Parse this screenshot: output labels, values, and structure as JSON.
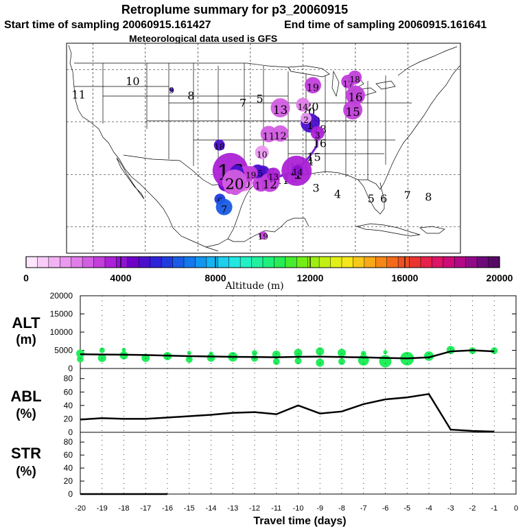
{
  "header": {
    "title": "Retroplume summary for p3_20060915",
    "start_label": "Start time of sampling 20060915.161427",
    "end_label": "End time of sampling 20060915.161641",
    "met_label": "Meteorological data used is GFS"
  },
  "map": {
    "plume_points": [
      {
        "day": "1",
        "lon": -88.6,
        "lat": 39.8,
        "alt": 5200,
        "size": 14
      },
      {
        "day": "2",
        "lon": -89.4,
        "lat": 40.7,
        "alt": 1500,
        "size": 8
      },
      {
        "day": "3",
        "lon": -87.2,
        "lat": 37.9,
        "alt": 3500,
        "size": 10
      },
      {
        "day": "4",
        "lon": -91.2,
        "lat": 30.7,
        "alt": 3600,
        "size": 22
      },
      {
        "day": "5",
        "lon": -104.7,
        "lat": 28.2,
        "alt": 4600,
        "size": 11
      },
      {
        "day": "6",
        "lon": -105.8,
        "lat": 25.3,
        "alt": 5800,
        "size": 8
      },
      {
        "day": "7",
        "lon": -105.0,
        "lat": 23.8,
        "alt": 6500,
        "size": 12
      },
      {
        "day": "8",
        "lon": -103.8,
        "lat": 27.6,
        "alt": 3000,
        "size": 10
      },
      {
        "day": "9",
        "lon": -102.9,
        "lat": 27.4,
        "alt": 3200,
        "size": 10
      },
      {
        "day": "10",
        "lon": -101.4,
        "lat": 28.6,
        "alt": 2200,
        "size": 14
      },
      {
        "day": "11",
        "lon": -98.0,
        "lat": 28.3,
        "alt": 3200,
        "size": 12
      },
      {
        "day": "12",
        "lon": -96.3,
        "lat": 28.5,
        "alt": 3000,
        "size": 14
      },
      {
        "day": "13",
        "lon": -95.6,
        "lat": 30.0,
        "alt": 3800,
        "size": 10
      },
      {
        "day": "14",
        "lon": -91.0,
        "lat": 30.8,
        "alt": 4200,
        "size": 8
      },
      {
        "day": "15",
        "lon": -98.6,
        "lat": 30.6,
        "alt": 5000,
        "size": 10
      },
      {
        "day": "16",
        "lon": -103.8,
        "lat": 30.7,
        "alt": 3800,
        "size": 26
      },
      {
        "day": "17",
        "lon": -100.7,
        "lat": 30.1,
        "alt": 3300,
        "size": 12
      },
      {
        "day": "18",
        "lon": -102.6,
        "lat": 30.5,
        "alt": 4800,
        "size": 10
      },
      {
        "day": "19",
        "lon": -99.9,
        "lat": 30.3,
        "alt": 3100,
        "size": 10
      },
      {
        "day": "20",
        "lon": -103.0,
        "lat": 28.6,
        "alt": 2600,
        "size": 18
      }
    ],
    "secondary_points": [
      {
        "day": "4",
        "lon": -97.6,
        "lat": 30.4,
        "alt": 5000,
        "size": 10
      },
      {
        "day": "10",
        "lon": -97.8,
        "lat": 34.2,
        "alt": 1500,
        "size": 10
      },
      {
        "day": "11",
        "lon": -96.5,
        "lat": 37.7,
        "alt": 2600,
        "size": 12
      },
      {
        "day": "12",
        "lon": -94.3,
        "lat": 37.8,
        "alt": 2600,
        "size": 12
      },
      {
        "day": "13",
        "lon": -94.3,
        "lat": 42.7,
        "alt": 2800,
        "size": 14
      },
      {
        "day": "14",
        "lon": -90.0,
        "lat": 43.3,
        "alt": 2000,
        "size": 10
      },
      {
        "day": "15",
        "lon": -80.5,
        "lat": 42.3,
        "alt": 3200,
        "size": 14
      },
      {
        "day": "16",
        "lon": -80.0,
        "lat": 45.1,
        "alt": 3200,
        "size": 14
      },
      {
        "day": "17",
        "lon": -81.4,
        "lat": 47.7,
        "alt": 3000,
        "size": 10
      },
      {
        "day": "18",
        "lon": -80.1,
        "lat": 48.5,
        "alt": 3000,
        "size": 10
      },
      {
        "day": "19",
        "lon": -88.1,
        "lat": 47.0,
        "alt": 3100,
        "size": 12
      },
      {
        "day": "18",
        "lon": -105.9,
        "lat": 35.6,
        "alt": 4800,
        "size": 8
      },
      {
        "day": "9",
        "lon": -115.0,
        "lat": 46.1,
        "alt": 5200,
        "size": 3
      },
      {
        "day": "19",
        "lon": -97.6,
        "lat": 18.4,
        "alt": 3300,
        "size": 6
      }
    ],
    "track_line": [
      [
        -89.4,
        40.7
      ],
      [
        -88.6,
        39.8
      ],
      [
        -87.2,
        37.9
      ],
      [
        -87.3,
        35.5
      ],
      [
        -88.6,
        33.6
      ],
      [
        -91.0,
        30.8
      ],
      [
        -91.8,
        30.5
      ],
      [
        -94.5,
        29.6
      ],
      [
        -96.6,
        30.4
      ],
      [
        -99.9,
        30.3
      ]
    ],
    "track_labels": [
      {
        "day": "20",
        "lon": -89.0,
        "lat": 41.2
      },
      {
        "day": "19",
        "lon": -88.0,
        "lat": 39.5
      },
      {
        "day": "18",
        "lon": -86.8,
        "lat": 37.9
      },
      {
        "day": "16",
        "lon": -86.8,
        "lat": 35.2
      },
      {
        "day": "15",
        "lon": -87.9,
        "lat": 32.6
      },
      {
        "day": "14",
        "lon": -89.3,
        "lat": 31.7
      },
      {
        "day": "13",
        "lon": -91.3,
        "lat": 30.7
      },
      {
        "day": "3",
        "lon": -89.4,
        "lat": 29.9
      },
      {
        "day": "12",
        "lon": -92.4,
        "lat": 28.6
      },
      {
        "day": "11",
        "lon": -93.9,
        "lat": 28.2
      },
      {
        "day": "3",
        "lon": -87.5,
        "lat": 26.7
      },
      {
        "day": "4",
        "lon": -83.4,
        "lat": 25.5
      },
      {
        "day": "5",
        "lon": -77.0,
        "lat": 24.7
      },
      {
        "day": "6",
        "lon": -74.6,
        "lat": 24.7
      },
      {
        "day": "7",
        "lon": -70.1,
        "lat": 25.3
      },
      {
        "day": "8",
        "lon": -66.1,
        "lat": 25.0
      },
      {
        "day": "10",
        "lon": -122.4,
        "lat": 47.0
      },
      {
        "day": "11",
        "lon": -132.7,
        "lat": 44.5
      },
      {
        "day": "8",
        "lon": -111.3,
        "lat": 44.3
      },
      {
        "day": "5",
        "lon": -98.2,
        "lat": 43.7
      },
      {
        "day": "7",
        "lon": -101.4,
        "lat": 42.9
      },
      {
        "day": "20",
        "lon": -88.3,
        "lat": 42.2
      },
      {
        "day": "13",
        "lon": -96.6,
        "lat": 29.7
      }
    ]
  },
  "colorbar": {
    "min": 0,
    "max": 20000,
    "ticks": [
      "0",
      "4000",
      "8000",
      "12000",
      "16000",
      "20000"
    ],
    "label": "Altitude (m)",
    "colors": [
      "#ffe6ff",
      "#f9ccf9",
      "#f2b2f4",
      "#ea99f0",
      "#e07de9",
      "#d25ee2",
      "#c23fdb",
      "#ac22d6",
      "#9012d2",
      "#6f00c8",
      "#4b0fcc",
      "#2e22da",
      "#1f3be0",
      "#1a5ce5",
      "#1278ec",
      "#1296f0",
      "#16b4f2",
      "#1ecfee",
      "#22e6e0",
      "#22f0c5",
      "#20f09f",
      "#1ef07a",
      "#26ec55",
      "#46ec2e",
      "#72ee16",
      "#9cee10",
      "#c3f012",
      "#e2f018",
      "#f6e61a",
      "#f8c81a",
      "#f8a818",
      "#f68617",
      "#f26a1a",
      "#ee4f24",
      "#ea3430",
      "#e6204a",
      "#de1466",
      "#cc0c78",
      "#b20a84",
      "#920a88",
      "#6e0a7a",
      "#560a66"
    ]
  },
  "alt_panel": {
    "ylabel_top": "ALT",
    "ylabel_bottom": "(m)",
    "yticks": [
      "20000",
      "15000",
      "10000",
      "5000",
      "0"
    ],
    "ymax": 20000,
    "line": [
      [
        -20,
        3900
      ],
      [
        -19,
        3850
      ],
      [
        -18,
        3800
      ],
      [
        -17,
        3700
      ],
      [
        -16,
        3550
      ],
      [
        -15,
        3400
      ],
      [
        -14,
        3300
      ],
      [
        -13,
        3200
      ],
      [
        -12,
        3150
      ],
      [
        -11,
        3100
      ],
      [
        -10,
        3200
      ],
      [
        -9,
        3250
      ],
      [
        -8,
        3150
      ],
      [
        -7,
        3050
      ],
      [
        -6,
        2900
      ],
      [
        -5,
        2800
      ],
      [
        -4,
        3050
      ],
      [
        -3,
        4700
      ],
      [
        -2,
        5000
      ],
      [
        -1,
        4700
      ]
    ],
    "dots": [
      {
        "x": -20,
        "y": 4100,
        "s": 6
      },
      {
        "x": -20,
        "y": 2600,
        "s": 5
      },
      {
        "x": -19,
        "y": 5000,
        "s": 4
      },
      {
        "x": -19,
        "y": 2900,
        "s": 6
      },
      {
        "x": -18,
        "y": 3600,
        "s": 6
      },
      {
        "x": -18,
        "y": 5100,
        "s": 3
      },
      {
        "x": -17,
        "y": 2900,
        "s": 6
      },
      {
        "x": -16,
        "y": 3400,
        "s": 6
      },
      {
        "x": -15,
        "y": 2500,
        "s": 5
      },
      {
        "x": -15,
        "y": 4300,
        "s": 3
      },
      {
        "x": -14,
        "y": 3000,
        "s": 6
      },
      {
        "x": -14,
        "y": 4100,
        "s": 3
      },
      {
        "x": -13,
        "y": 3200,
        "s": 7
      },
      {
        "x": -12,
        "y": 2800,
        "s": 5
      },
      {
        "x": -12,
        "y": 4300,
        "s": 4
      },
      {
        "x": -11,
        "y": 3800,
        "s": 6
      },
      {
        "x": -11,
        "y": 1900,
        "s": 5
      },
      {
        "x": -10,
        "y": 4300,
        "s": 6
      },
      {
        "x": -10,
        "y": 2100,
        "s": 5
      },
      {
        "x": -9,
        "y": 4700,
        "s": 6
      },
      {
        "x": -9,
        "y": 1600,
        "s": 6
      },
      {
        "x": -8,
        "y": 4300,
        "s": 6
      },
      {
        "x": -8,
        "y": 1900,
        "s": 5
      },
      {
        "x": -7,
        "y": 4100,
        "s": 4
      },
      {
        "x": -7,
        "y": 2300,
        "s": 8
      },
      {
        "x": -6,
        "y": 2000,
        "s": 9
      },
      {
        "x": -6,
        "y": 4500,
        "s": 3
      },
      {
        "x": -5,
        "y": 2700,
        "s": 10
      },
      {
        "x": -4,
        "y": 3400,
        "s": 7
      },
      {
        "x": -3,
        "y": 5100,
        "s": 6
      },
      {
        "x": -2,
        "y": 4900,
        "s": 5
      },
      {
        "x": -1,
        "y": 4900,
        "s": 5
      }
    ]
  },
  "abl_panel": {
    "ylabel_top": "ABL",
    "ylabel_bottom": "(%)",
    "yticks": [
      "80",
      "60",
      "40",
      "20",
      "0"
    ],
    "ymax": 95,
    "line": [
      [
        -20,
        19
      ],
      [
        -19,
        21
      ],
      [
        -18,
        20
      ],
      [
        -17,
        20
      ],
      [
        -16,
        22
      ],
      [
        -15,
        24
      ],
      [
        -14,
        26
      ],
      [
        -13,
        29
      ],
      [
        -12,
        30
      ],
      [
        -11,
        27
      ],
      [
        -10,
        40
      ],
      [
        -9,
        28
      ],
      [
        -8,
        31
      ],
      [
        -7,
        42
      ],
      [
        -6,
        49
      ],
      [
        -5,
        52
      ],
      [
        -4,
        57
      ],
      [
        -3,
        4
      ],
      [
        -2,
        2
      ],
      [
        -1,
        1
      ]
    ]
  },
  "str_panel": {
    "ylabel_top": "STR",
    "ylabel_bottom": "(%)",
    "yticks": [
      "80",
      "60",
      "40",
      "20",
      "0"
    ],
    "ymax": 95,
    "line": [
      [
        -20,
        0
      ],
      [
        -16,
        0
      ]
    ]
  },
  "xaxis": {
    "ticks": [
      "-20",
      "-19",
      "-18",
      "-17",
      "-16",
      "-15",
      "-14",
      "-13",
      "-12",
      "-11",
      "-10",
      "-9",
      "-8",
      "-7",
      "-6",
      "-5",
      "-4",
      "-3",
      "-2",
      "-1",
      "0"
    ],
    "label": "Travel time (days)",
    "min": -20,
    "max": 0
  }
}
